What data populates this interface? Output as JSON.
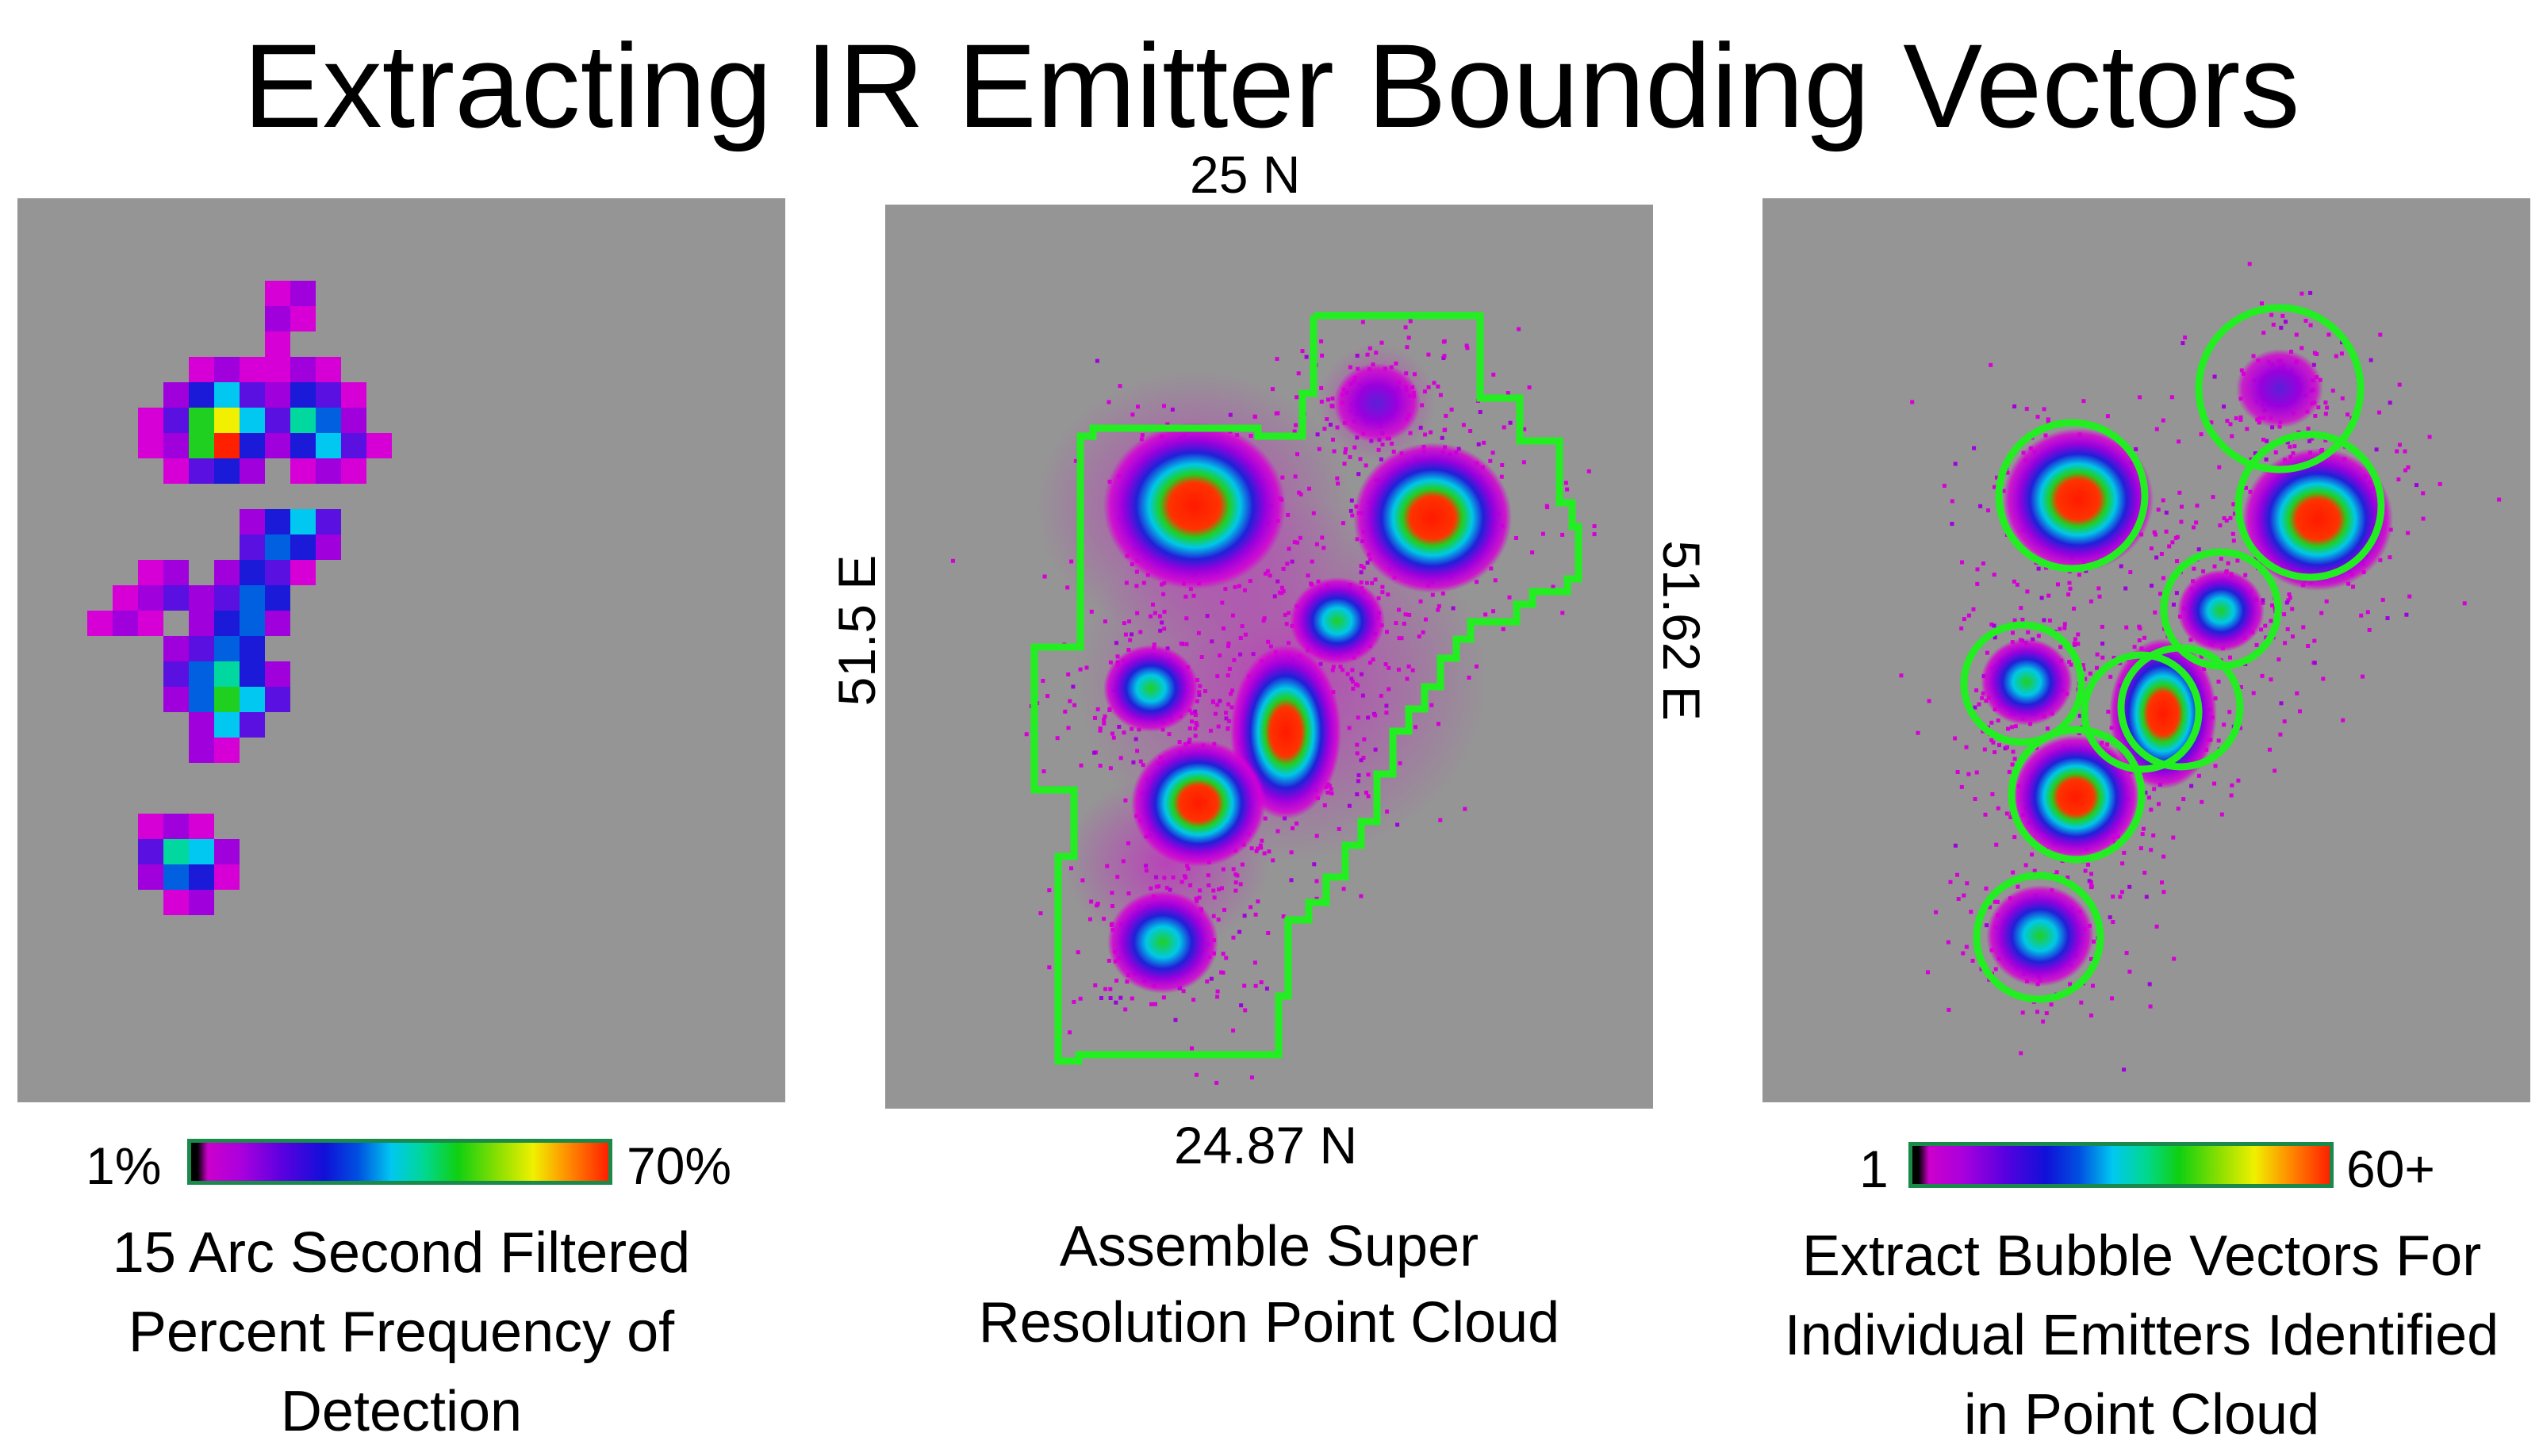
{
  "title": "Extracting IR Emitter Bounding Vectors",
  "left_panel": {
    "scale_min": "1%",
    "scale_max": "70%",
    "caption_lines": [
      "15 Arc Second Filtered",
      "Percent Frequency of",
      "Detection"
    ]
  },
  "middle_panel": {
    "top_label": "25  N",
    "bottom_label": "24.87  N",
    "left_label": "51.5 E",
    "right_label": "51.62 E",
    "caption_lines": [
      "Assemble Super",
      "Resolution Point Cloud"
    ]
  },
  "right_panel": {
    "scale_min": "1",
    "scale_max": "60+",
    "caption_lines": [
      "Extract Bubble Vectors For",
      "Individual Emitters Identified",
      "in Point Cloud"
    ]
  },
  "colors": {
    "panel_gray": "#959595",
    "boundary_green": "#22ee22",
    "colorbar_border": "#1a8a4a"
  }
}
